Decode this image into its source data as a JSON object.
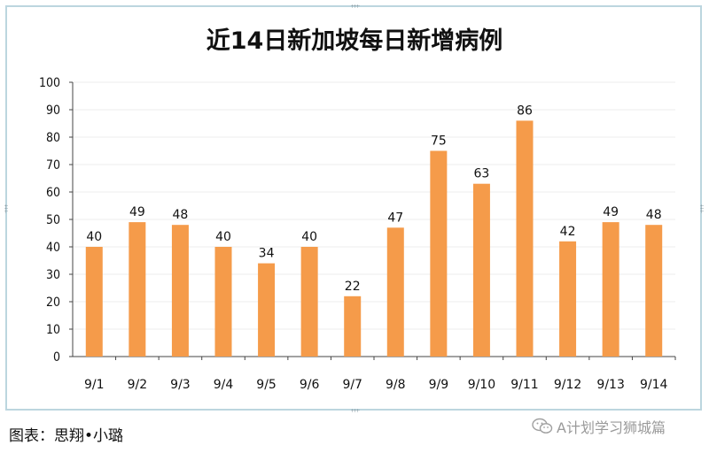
{
  "chart_data": {
    "type": "bar",
    "title": "近14日新加坡每日新增病例",
    "categories": [
      "9/1",
      "9/2",
      "9/3",
      "9/4",
      "9/5",
      "9/6",
      "9/7",
      "9/8",
      "9/9",
      "9/10",
      "9/11",
      "9/12",
      "9/13",
      "9/14"
    ],
    "values": [
      40,
      49,
      48,
      40,
      34,
      40,
      22,
      47,
      75,
      63,
      86,
      42,
      49,
      48
    ],
    "ylim": [
      0,
      100
    ],
    "yticks": [
      0,
      10,
      20,
      30,
      40,
      50,
      60,
      70,
      80,
      90,
      100
    ],
    "grid": true,
    "bar_color": "#f59b4a",
    "data_labels": true
  },
  "caption": "图表：思翔•小璐",
  "watermark": {
    "text": "A计划学习狮城篇",
    "icon": "wechat-icon"
  }
}
